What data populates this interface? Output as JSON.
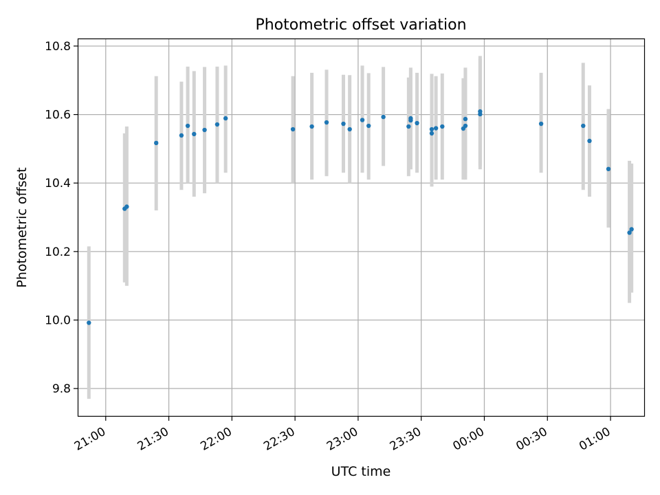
{
  "chart_data": {
    "type": "scatter",
    "title": "Photometric offset variation",
    "xlabel": "UTC time",
    "ylabel": "Photometric offset",
    "x_format": "time (HH:MM, UTC), day rolls over after 24:00",
    "xlim": [
      "20:47",
      "01:16"
    ],
    "ylim": [
      9.72,
      10.82
    ],
    "xticks": [
      "21:00",
      "21:30",
      "22:00",
      "22:30",
      "23:00",
      "23:30",
      "00:00",
      "00:30",
      "01:00"
    ],
    "yticks": [
      "9.8",
      "10.0",
      "10.2",
      "10.4",
      "10.6",
      "10.8"
    ],
    "grid": true,
    "colors": {
      "point": "#1f77b4",
      "errorbar": "#d3d3d3",
      "grid": "#b0b0b0"
    },
    "series": [
      {
        "points": [
          {
            "t": "20:52",
            "y": 9.992,
            "lo": 9.77,
            "hi": 10.215
          },
          {
            "t": "21:09",
            "y": 10.325,
            "lo": 10.11,
            "hi": 10.545
          },
          {
            "t": "21:10",
            "y": 10.331,
            "lo": 10.1,
            "hi": 10.565
          },
          {
            "t": "21:24",
            "y": 10.517,
            "lo": 10.32,
            "hi": 10.712
          },
          {
            "t": "21:36",
            "y": 10.539,
            "lo": 10.38,
            "hi": 10.696
          },
          {
            "t": "21:39",
            "y": 10.567,
            "lo": 10.4,
            "hi": 10.74
          },
          {
            "t": "21:42",
            "y": 10.543,
            "lo": 10.36,
            "hi": 10.727
          },
          {
            "t": "21:47",
            "y": 10.555,
            "lo": 10.37,
            "hi": 10.739
          },
          {
            "t": "21:53",
            "y": 10.571,
            "lo": 10.4,
            "hi": 10.74
          },
          {
            "t": "21:57",
            "y": 10.589,
            "lo": 10.43,
            "hi": 10.743
          },
          {
            "t": "22:29",
            "y": 10.557,
            "lo": 10.4,
            "hi": 10.712
          },
          {
            "t": "22:38",
            "y": 10.565,
            "lo": 10.41,
            "hi": 10.722
          },
          {
            "t": "22:45",
            "y": 10.577,
            "lo": 10.42,
            "hi": 10.731
          },
          {
            "t": "22:53",
            "y": 10.573,
            "lo": 10.43,
            "hi": 10.716
          },
          {
            "t": "22:56",
            "y": 10.557,
            "lo": 10.4,
            "hi": 10.715
          },
          {
            "t": "23:02",
            "y": 10.584,
            "lo": 10.43,
            "hi": 10.743
          },
          {
            "t": "23:05",
            "y": 10.567,
            "lo": 10.41,
            "hi": 10.721
          },
          {
            "t": "23:12",
            "y": 10.593,
            "lo": 10.45,
            "hi": 10.739
          },
          {
            "t": "23:24",
            "y": 10.565,
            "lo": 10.42,
            "hi": 10.708
          },
          {
            "t": "23:25",
            "y": 10.589,
            "lo": 10.44,
            "hi": 10.737
          },
          {
            "t": "23:25",
            "y": 10.583,
            "lo": 10.44,
            "hi": 10.731
          },
          {
            "t": "23:28",
            "y": 10.575,
            "lo": 10.43,
            "hi": 10.722
          },
          {
            "t": "23:35",
            "y": 10.557,
            "lo": 10.39,
            "hi": 10.719
          },
          {
            "t": "23:35",
            "y": 10.545,
            "lo": 10.39,
            "hi": 10.704
          },
          {
            "t": "23:37",
            "y": 10.56,
            "lo": 10.41,
            "hi": 10.712
          },
          {
            "t": "23:40",
            "y": 10.565,
            "lo": 10.41,
            "hi": 10.72
          },
          {
            "t": "23:50",
            "y": 10.559,
            "lo": 10.41,
            "hi": 10.706
          },
          {
            "t": "23:51",
            "y": 10.567,
            "lo": 10.41,
            "hi": 10.731
          },
          {
            "t": "23:51",
            "y": 10.587,
            "lo": 10.43,
            "hi": 10.737
          },
          {
            "t": "23:58",
            "y": 10.601,
            "lo": 10.44,
            "hi": 10.762
          },
          {
            "t": "23:58",
            "y": 10.609,
            "lo": 10.45,
            "hi": 10.771
          },
          {
            "t": "00:27",
            "y": 10.573,
            "lo": 10.43,
            "hi": 10.722
          },
          {
            "t": "00:47",
            "y": 10.567,
            "lo": 10.38,
            "hi": 10.751
          },
          {
            "t": "00:50",
            "y": 10.523,
            "lo": 10.36,
            "hi": 10.685
          },
          {
            "t": "00:59",
            "y": 10.441,
            "lo": 10.27,
            "hi": 10.616
          },
          {
            "t": "01:09",
            "y": 10.255,
            "lo": 10.05,
            "hi": 10.465
          },
          {
            "t": "01:10",
            "y": 10.265,
            "lo": 10.08,
            "hi": 10.457
          }
        ]
      }
    ]
  }
}
